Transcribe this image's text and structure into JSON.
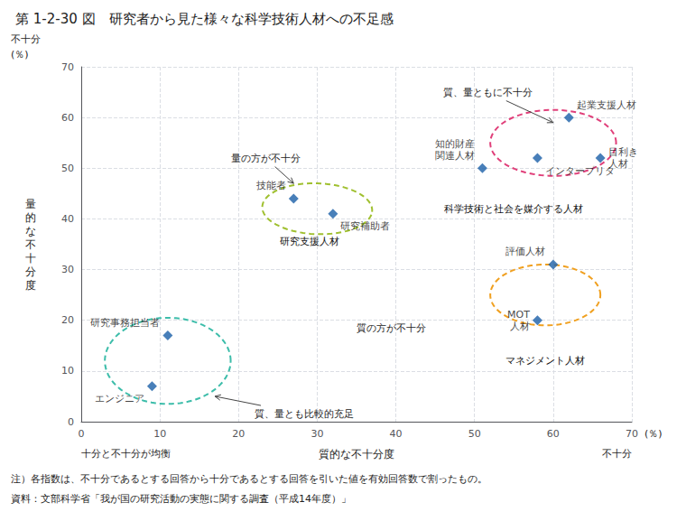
{
  "chart_data": {
    "type": "scatter",
    "title": "第 1-2-30 図　研究者から見た様々な科学技術人材への不足感",
    "xlabel": "質的な不十分度",
    "xlabel_left": "十分と不十分が均衡",
    "xlabel_right": "不十分",
    "xunit": "(％)",
    "ylabel": "量\n的\nな\n不\n十\n分\n度",
    "ylabel_top": "不十分",
    "yunit": "(％)",
    "xlim": [
      0,
      70
    ],
    "ylim": [
      0,
      70
    ],
    "xticks": [
      0,
      10,
      20,
      30,
      40,
      50,
      60,
      70
    ],
    "yticks": [
      0,
      10,
      20,
      30,
      40,
      50,
      60,
      70
    ],
    "grid": true,
    "marker": "diamond",
    "color": "#1a5fa8",
    "points": [
      {
        "x": 9,
        "y": 7,
        "label": "エンジニア"
      },
      {
        "x": 11,
        "y": 17,
        "label": "研究事務担当者"
      },
      {
        "x": 27,
        "y": 44,
        "label": "技能者"
      },
      {
        "x": 32,
        "y": 41,
        "label": "研究補助者"
      },
      {
        "x": 51,
        "y": 50,
        "label": "知的財産\n関連人材"
      },
      {
        "x": 58,
        "y": 52,
        "label": "インタープリタ"
      },
      {
        "x": 62,
        "y": 60,
        "label": "起業支援人材"
      },
      {
        "x": 66,
        "y": 52,
        "label": "目利き\n人材"
      },
      {
        "x": 60,
        "y": 31,
        "label": "評価人材"
      },
      {
        "x": 58,
        "y": 20,
        "label": "MOT\n人材"
      }
    ],
    "ellipses": [
      {
        "cx": 11,
        "cy": 12,
        "w": 16,
        "h": 17,
        "angle": 0,
        "color": "#3dbdaa"
      },
      {
        "cx": 30,
        "cy": 42,
        "w": 14,
        "h": 10,
        "angle": -5,
        "color": "#a0c030"
      },
      {
        "cx": 60,
        "cy": 55,
        "w": 16,
        "h": 13,
        "angle": 0,
        "color": "#e0407a"
      },
      {
        "cx": 59,
        "cy": 25,
        "w": 14,
        "h": 12,
        "angle": 0,
        "color": "#f0a020"
      }
    ],
    "group_labels": [
      {
        "text": "研究支援人材",
        "x": 29,
        "y": 36.5
      },
      {
        "text": "科学技術と社会を媒介する人材",
        "x": 55,
        "y": 43
      },
      {
        "text": "マネジメント人材",
        "x": 59,
        "y": 13
      }
    ],
    "annotations": [
      {
        "text": "質、量ともに不十分",
        "x": 46,
        "y": 65,
        "arrow_x": 60,
        "arrow_y": 59
      },
      {
        "text": "量の方が不十分",
        "x": 19,
        "y": 52,
        "arrow_x": 27,
        "arrow_y": 47
      },
      {
        "text": "質、量とも比較的充足",
        "x": 22,
        "y": 1.5,
        "arrow_x": 17,
        "arrow_y": 5
      },
      {
        "text": "質の方が不十分",
        "x": 35,
        "y": 18.5
      }
    ],
    "notes": [
      "注）各指数は、不十分であるとする回答から十分であるとする回答を引いた値を有効回答数で割ったもの。",
      "資料：文部科学省「我が国の研究活動の実態に関する調査（平成14年度）」"
    ]
  }
}
